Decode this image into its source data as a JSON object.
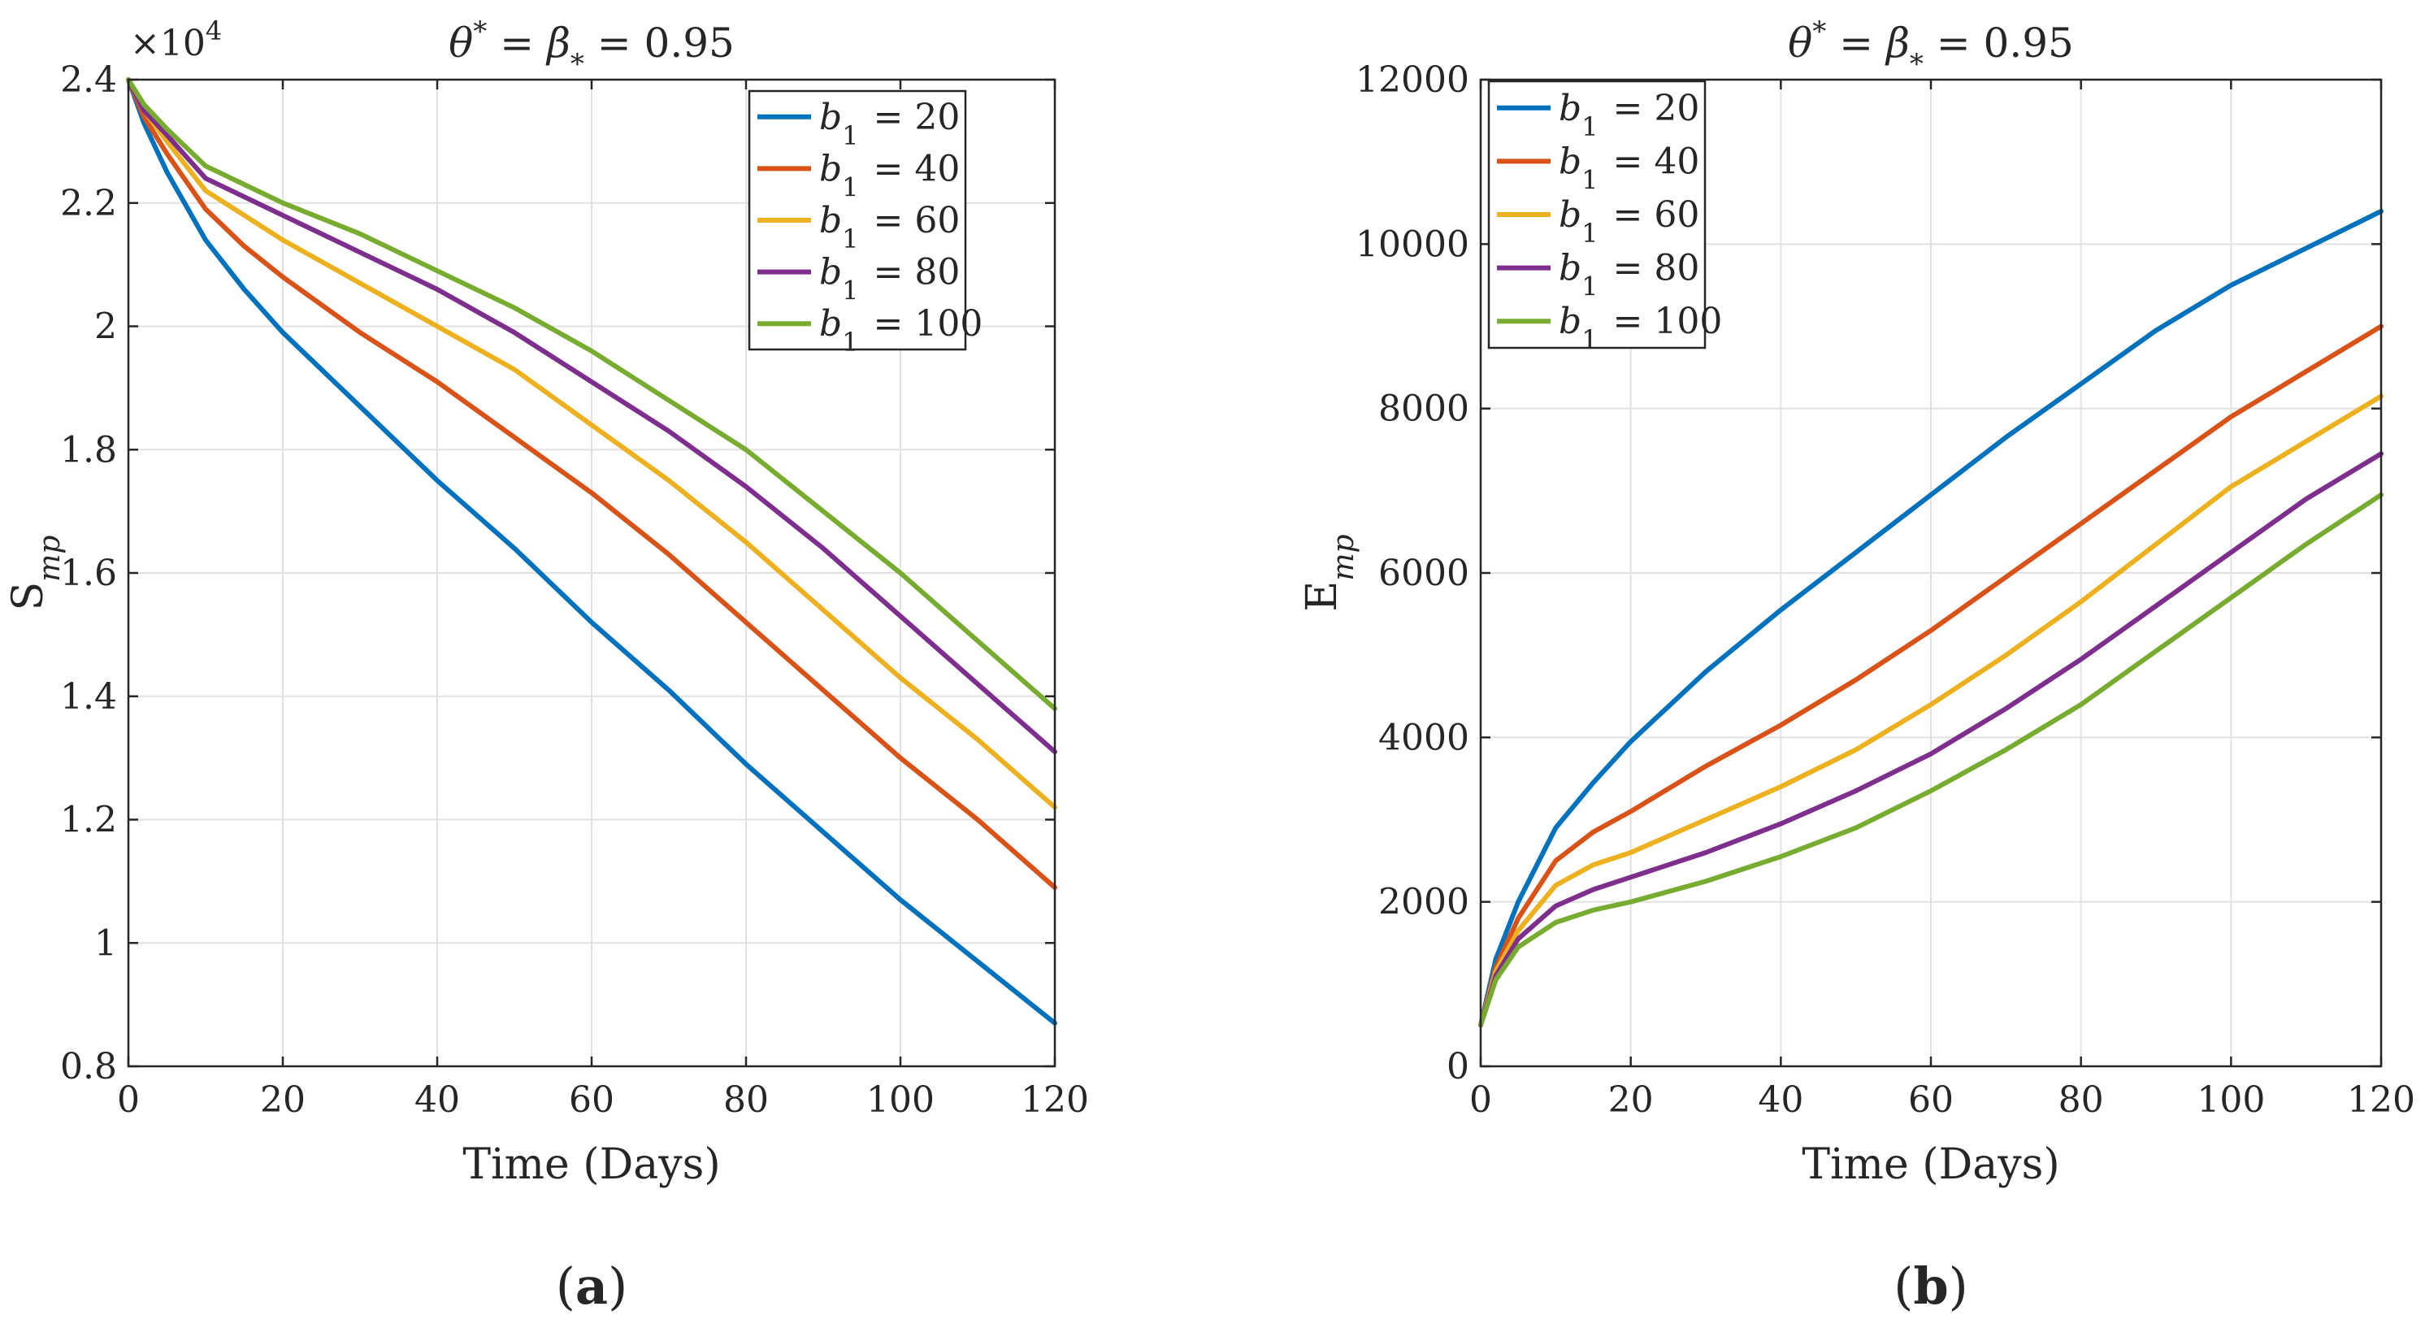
{
  "chart_data": [
    {
      "type": "line",
      "panel_label": "(a)",
      "title": "θ* = β* = 0.95",
      "xlabel": "Time (Days)",
      "ylabel": "S_mp",
      "y_exponent_label": "×10^4",
      "xlim": [
        0,
        120
      ],
      "ylim": [
        0.8,
        2.4
      ],
      "xticks": [
        0,
        20,
        40,
        60,
        80,
        100,
        120
      ],
      "xtick_labels": [
        "0",
        "20",
        "40",
        "60",
        "80",
        "100",
        "120"
      ],
      "yticks": [
        0.8,
        1.0,
        1.2,
        1.4,
        1.6,
        1.8,
        2.0,
        2.2,
        2.4
      ],
      "ytick_labels": [
        "0.8",
        "1",
        "1.2",
        "1.4",
        "1.6",
        "1.8",
        "2",
        "2.2",
        "2.4"
      ],
      "grid": true,
      "legend_position": "top-right",
      "x": [
        0,
        2,
        5,
        10,
        15,
        20,
        30,
        40,
        50,
        60,
        70,
        80,
        90,
        100,
        110,
        120
      ],
      "series": [
        {
          "name": "b1 = 20",
          "color": "#0072BD",
          "values": [
            2.4,
            2.33,
            2.25,
            2.14,
            2.06,
            1.99,
            1.87,
            1.75,
            1.64,
            1.52,
            1.41,
            1.29,
            1.18,
            1.07,
            0.97,
            0.87
          ]
        },
        {
          "name": "b1 = 40",
          "color": "#D95319",
          "values": [
            2.4,
            2.34,
            2.28,
            2.19,
            2.13,
            2.08,
            1.99,
            1.91,
            1.82,
            1.73,
            1.63,
            1.52,
            1.41,
            1.3,
            1.2,
            1.09
          ]
        },
        {
          "name": "b1 = 60",
          "color": "#EDB120",
          "values": [
            2.4,
            2.35,
            2.3,
            2.22,
            2.18,
            2.14,
            2.07,
            2.0,
            1.93,
            1.84,
            1.75,
            1.65,
            1.54,
            1.43,
            1.33,
            1.22
          ]
        },
        {
          "name": "b1 = 80",
          "color": "#7E2F8E",
          "values": [
            2.4,
            2.35,
            2.31,
            2.24,
            2.21,
            2.18,
            2.12,
            2.06,
            1.99,
            1.91,
            1.83,
            1.74,
            1.64,
            1.53,
            1.42,
            1.31
          ]
        },
        {
          "name": "b1 = 100",
          "color": "#77AC30",
          "values": [
            2.4,
            2.36,
            2.32,
            2.26,
            2.23,
            2.2,
            2.15,
            2.09,
            2.03,
            1.96,
            1.88,
            1.8,
            1.7,
            1.6,
            1.49,
            1.38
          ]
        }
      ]
    },
    {
      "type": "line",
      "panel_label": "(b)",
      "title": "θ* = β* = 0.95",
      "xlabel": "Time (Days)",
      "ylabel": "E_mp",
      "xlim": [
        0,
        120
      ],
      "ylim": [
        0,
        12000
      ],
      "xticks": [
        0,
        20,
        40,
        60,
        80,
        100,
        120
      ],
      "xtick_labels": [
        "0",
        "20",
        "40",
        "60",
        "80",
        "100",
        "120"
      ],
      "yticks": [
        0,
        2000,
        4000,
        6000,
        8000,
        10000,
        12000
      ],
      "ytick_labels": [
        "0",
        "2000",
        "4000",
        "6000",
        "8000",
        "10000",
        "12000"
      ],
      "grid": true,
      "legend_position": "top-left",
      "x": [
        0,
        2,
        5,
        10,
        15,
        20,
        30,
        40,
        50,
        60,
        70,
        80,
        90,
        100,
        110,
        120
      ],
      "series": [
        {
          "name": "b1 = 20",
          "color": "#0072BD",
          "values": [
            500,
            1300,
            2000,
            2900,
            3450,
            3950,
            4800,
            5550,
            6250,
            6950,
            7650,
            8300,
            8950,
            9500,
            9950,
            10400
          ]
        },
        {
          "name": "b1 = 40",
          "color": "#D95319",
          "values": [
            500,
            1200,
            1800,
            2500,
            2850,
            3100,
            3650,
            4150,
            4700,
            5300,
            5950,
            6600,
            7250,
            7900,
            8450,
            9000
          ]
        },
        {
          "name": "b1 = 60",
          "color": "#EDB120",
          "values": [
            500,
            1150,
            1650,
            2200,
            2450,
            2600,
            3000,
            3400,
            3850,
            4400,
            5000,
            5650,
            6350,
            7050,
            7600,
            8150
          ]
        },
        {
          "name": "b1 = 80",
          "color": "#7E2F8E",
          "values": [
            500,
            1100,
            1550,
            1950,
            2150,
            2300,
            2600,
            2950,
            3350,
            3800,
            4350,
            4950,
            5600,
            6250,
            6900,
            7450
          ]
        },
        {
          "name": "b1 = 100",
          "color": "#77AC30",
          "values": [
            500,
            1050,
            1450,
            1750,
            1900,
            2000,
            2250,
            2550,
            2900,
            3350,
            3850,
            4400,
            5050,
            5700,
            6350,
            6950
          ]
        }
      ]
    }
  ]
}
